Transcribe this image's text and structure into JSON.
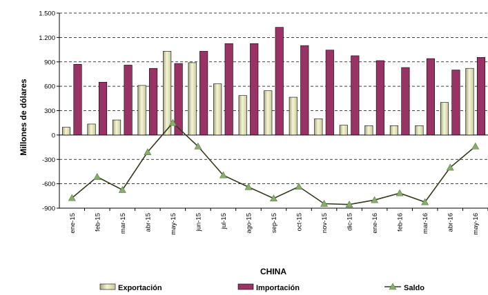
{
  "chart_data": {
    "type": "bar",
    "title": "CHINA",
    "xlabel": "",
    "ylabel": "Millones de dólares",
    "ylim": [
      -900,
      1500
    ],
    "yticks": [
      -900,
      -600,
      -300,
      0,
      300,
      600,
      900,
      1200,
      1500
    ],
    "ytick_labels": [
      "-900",
      "-600",
      "-300",
      "0",
      "300",
      "600",
      "900",
      "1.200",
      "1.500"
    ],
    "grid": "dashed-horizontal",
    "legend_position": "bottom",
    "categories": [
      "ene-15",
      "feb-15",
      "mar-15",
      "abr-15",
      "may-15",
      "jun-15",
      "jul-15",
      "ago-15",
      "sep-15",
      "oct-15",
      "nov-15",
      "dic-15",
      "ene-16",
      "feb-16",
      "mar-16",
      "abr-16",
      "may-16"
    ],
    "series": [
      {
        "name": "Exportación",
        "kind": "bar",
        "color": "#e8e8c0",
        "values": [
          95,
          135,
          185,
          610,
          1030,
          890,
          630,
          485,
          545,
          465,
          200,
          120,
          115,
          115,
          115,
          400,
          820
        ]
      },
      {
        "name": "Importación",
        "kind": "bar",
        "color": "#993366",
        "values": [
          870,
          650,
          860,
          820,
          880,
          1030,
          1125,
          1125,
          1325,
          1100,
          1045,
          975,
          915,
          830,
          940,
          800,
          955
        ]
      },
      {
        "name": "Saldo",
        "kind": "line",
        "color": "#2f3a1a",
        "marker_color": "#8aab6e",
        "values": [
          -775,
          -515,
          -675,
          -210,
          150,
          -140,
          -495,
          -640,
          -780,
          -635,
          -845,
          -855,
          -800,
          -715,
          -825,
          -400,
          -140
        ]
      }
    ]
  }
}
